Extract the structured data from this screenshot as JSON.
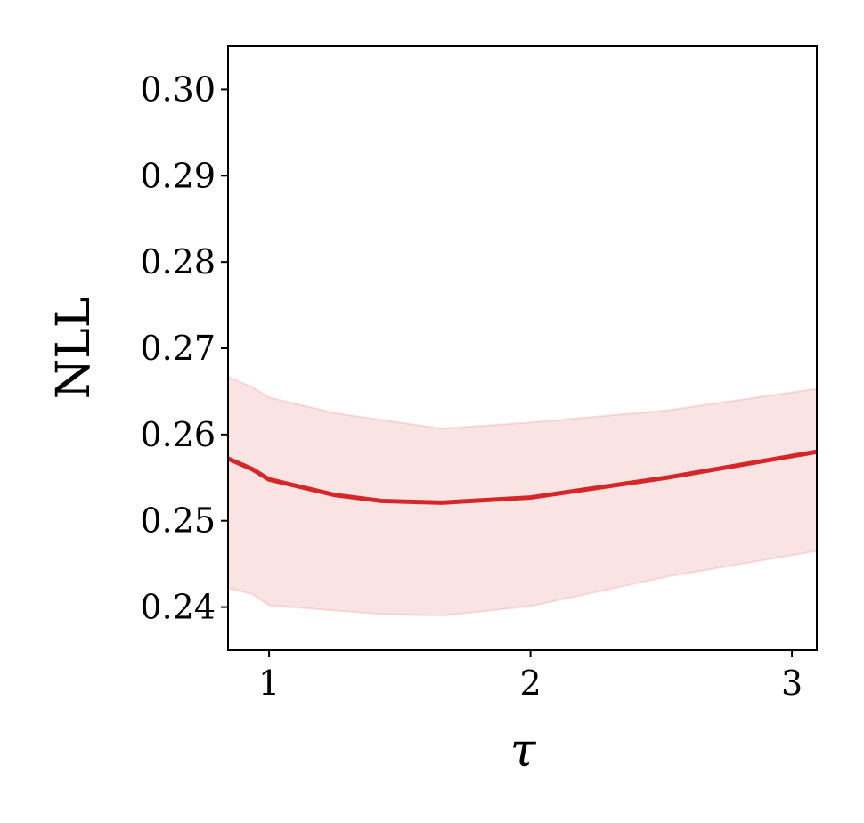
{
  "chart_data": {
    "type": "line",
    "xlabel": "τ",
    "ylabel": "NLL",
    "x": [
      0.843,
      0.935,
      1.0,
      1.25,
      1.43,
      1.66,
      2.0,
      2.52,
      3.095
    ],
    "series": [
      {
        "color": "#d62728",
        "values": [
          0.2572,
          0.256,
          0.2548,
          0.253,
          0.2523,
          0.2521,
          0.2527,
          0.255,
          0.258
        ],
        "upper": [
          0.2667,
          0.2655,
          0.2643,
          0.2625,
          0.2617,
          0.2607,
          0.2614,
          0.2628,
          0.2653
        ],
        "lower": [
          0.2422,
          0.2415,
          0.2402,
          0.2396,
          0.2392,
          0.239,
          0.2401,
          0.2435,
          0.2465
        ]
      }
    ],
    "xlim": [
      0.843,
      3.095
    ],
    "xticks": [
      1,
      2,
      3
    ],
    "ylim": [
      0.235,
      0.305
    ],
    "yticks": [
      0.24,
      0.25,
      0.26,
      0.27,
      0.28,
      0.29,
      {
        "value": 0.3,
        "label": "0.30"
      }
    ]
  }
}
